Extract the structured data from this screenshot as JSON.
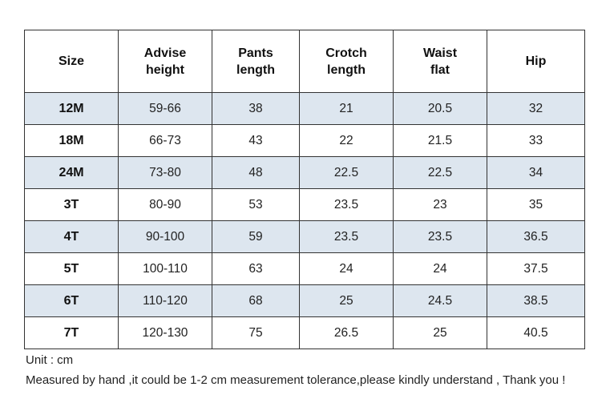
{
  "table": {
    "headers": [
      [
        "Size"
      ],
      [
        "Advise",
        "height"
      ],
      [
        "Pants",
        "length"
      ],
      [
        "Crotch",
        "length"
      ],
      [
        "Waist",
        "flat"
      ],
      [
        "Hip"
      ]
    ],
    "rows": [
      [
        "12M",
        "59-66",
        "38",
        "21",
        "20.5",
        "32"
      ],
      [
        "18M",
        "66-73",
        "43",
        "22",
        "21.5",
        "33"
      ],
      [
        "24M",
        "73-80",
        "48",
        "22.5",
        "22.5",
        "34"
      ],
      [
        "3T",
        "80-90",
        "53",
        "23.5",
        "23",
        "35"
      ],
      [
        "4T",
        "90-100",
        "59",
        "23.5",
        "23.5",
        "36.5"
      ],
      [
        "5T",
        "100-110",
        "63",
        "24",
        "24",
        "37.5"
      ],
      [
        "6T",
        "110-120",
        "68",
        "25",
        "24.5",
        "38.5"
      ],
      [
        "7T",
        "120-130",
        "75",
        "26.5",
        "25",
        "40.5"
      ]
    ]
  },
  "notes": {
    "unit": "Unit : cm",
    "tolerance": "Measured by hand ,it could be 1-2 cm measurement tolerance,please kindly understand , Thank you !"
  },
  "colors": {
    "shaded_row": "#dde6ef",
    "border": "#333333"
  }
}
